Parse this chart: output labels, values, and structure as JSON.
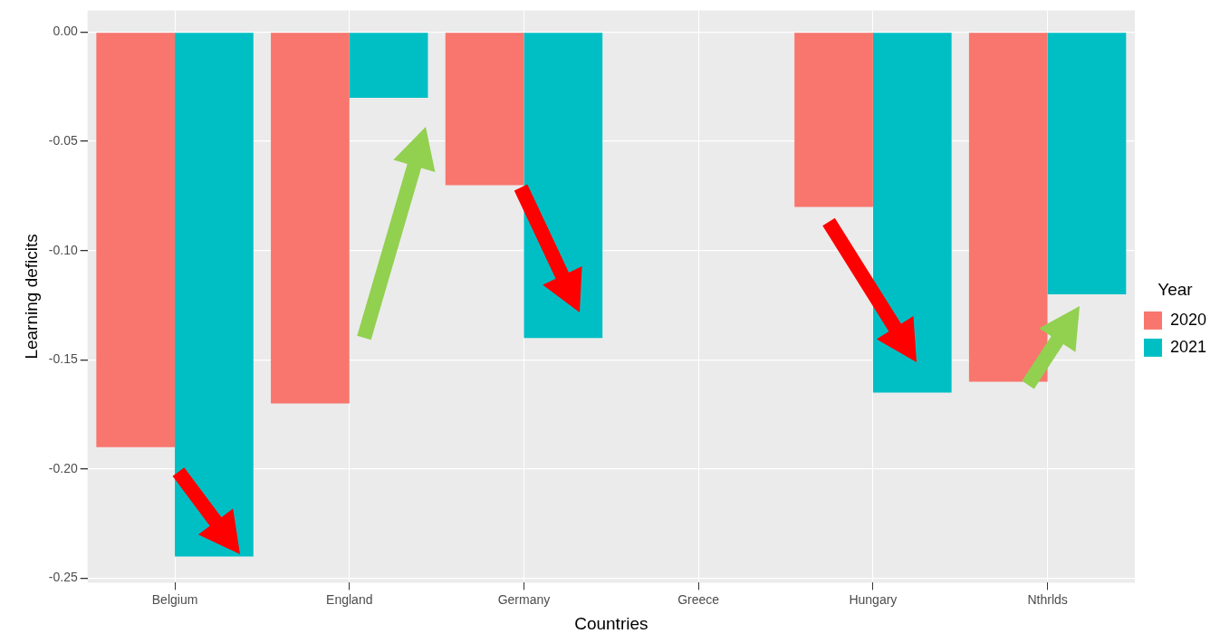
{
  "chart_data": {
    "type": "bar",
    "xlabel": "Countries",
    "ylabel": "Learning deficits",
    "legend_title": "Year",
    "categories": [
      "Belgium",
      "England",
      "Germany",
      "Greece",
      "Hungary",
      "Nthrlds"
    ],
    "series": [
      {
        "name": "2020",
        "color": "#f8766d",
        "values": [
          -0.19,
          -0.17,
          -0.07,
          null,
          -0.08,
          -0.16
        ]
      },
      {
        "name": "2021",
        "color": "#00bfc4",
        "values": [
          -0.24,
          -0.03,
          -0.14,
          null,
          -0.165,
          -0.12
        ]
      }
    ],
    "ylim": [
      -0.252,
      0.01
    ],
    "yticks": [
      {
        "value": -0.25,
        "label": "-0.25"
      },
      {
        "value": -0.2,
        "label": "-0.20"
      },
      {
        "value": -0.15,
        "label": "-0.15"
      },
      {
        "value": -0.1,
        "label": "-0.10"
      },
      {
        "value": -0.05,
        "label": "-0.05"
      },
      {
        "value": 0,
        "label": "0.00"
      }
    ],
    "grid": true,
    "legend": "right"
  }
}
